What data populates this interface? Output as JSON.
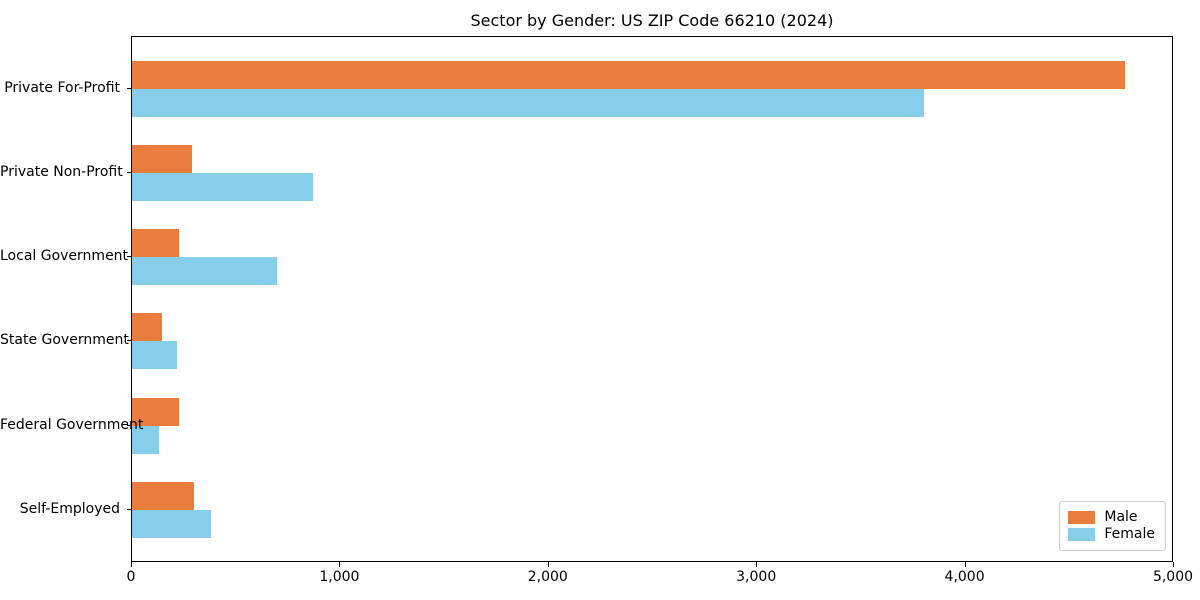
{
  "chart_data": {
    "type": "bar",
    "orientation": "horizontal",
    "title": "Sector by Gender: US ZIP Code 66210 (2024)",
    "categories": [
      "Private For-Profit",
      "Private Non-Profit",
      "Local Government",
      "State Government",
      "Federal Government",
      "Self-Employed"
    ],
    "series": [
      {
        "name": "Male",
        "color": "#e87d3e",
        "values": [
          4775,
          290,
          225,
          145,
          225,
          300
        ]
      },
      {
        "name": "Female",
        "color": "#87ceeb",
        "values": [
          3810,
          870,
          695,
          215,
          130,
          380
        ]
      }
    ],
    "xlabel": "",
    "ylabel": "",
    "xlim": [
      0,
      5000
    ],
    "x_ticks": [
      0,
      1000,
      2000,
      3000,
      4000,
      5000
    ],
    "x_tick_labels": [
      "0",
      "1,000",
      "2,000",
      "3,000",
      "4,000",
      "5,000"
    ],
    "grid": false,
    "legend": {
      "position": "lower-right",
      "entries": [
        "Male",
        "Female"
      ]
    }
  },
  "colors": {
    "background": "#ffffff",
    "spine": "#000000",
    "text": "#000000",
    "legend_border": "#cccccc",
    "male": "#e87d3e",
    "female": "#87ceeb"
  }
}
